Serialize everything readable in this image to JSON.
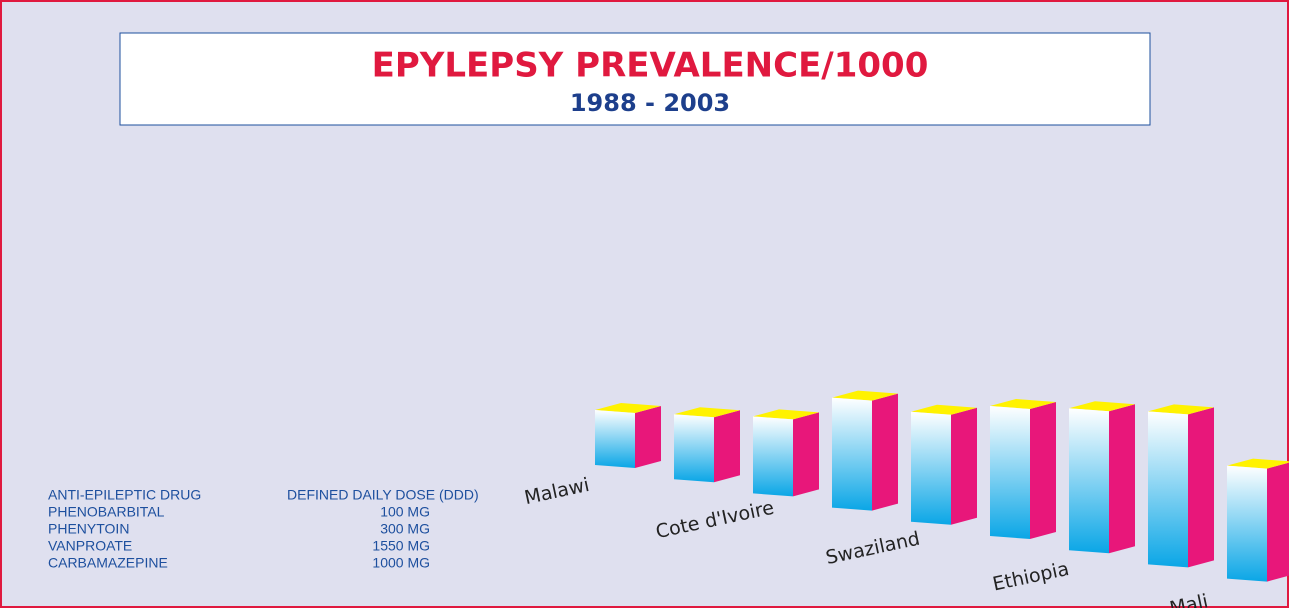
{
  "chart_data": {
    "type": "bar3d",
    "title": "EPYLEPSY PREVALENCE/1000",
    "subtitle": "1988 - 2003",
    "categories": [
      "Malawi",
      null,
      "Cote d'Ivoire",
      null,
      "Swaziland",
      null,
      "Ethiopia",
      null,
      "Mali"
    ],
    "values": [
      55,
      65,
      77,
      110,
      110,
      130,
      142,
      153,
      113
    ],
    "colors": {
      "front_top": "#ffffff",
      "front_bottom": "#0aa6e6",
      "side": "#e8177a",
      "top": "#fff200"
    }
  },
  "table": {
    "header": [
      "ANTI-EPILEPTIC DRUG",
      "DEFINED DAILY DOSE (DDD)"
    ],
    "rows": [
      [
        "PHENOBARBITAL",
        "100 MG"
      ],
      [
        "PHENYTOIN",
        "300 MG"
      ],
      [
        "VANPROATE",
        "1550 MG"
      ],
      [
        "CARBAMAZEPINE",
        "1000 MG"
      ]
    ]
  }
}
